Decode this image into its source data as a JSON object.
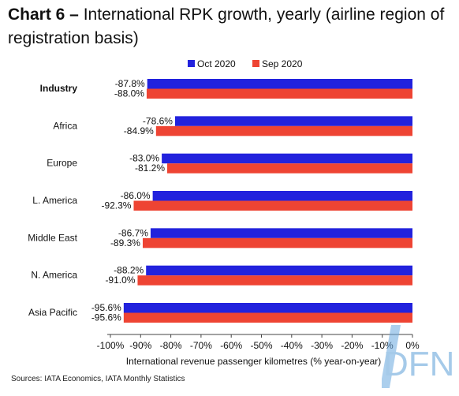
{
  "title": {
    "prefix": "Chart 6 –",
    "text": "International RPK growth, yearly (airline region of registration basis)"
  },
  "source": "Sources: IATA Economics, IATA Monthly Statistics",
  "watermark": "DFN",
  "chart_data": {
    "type": "bar",
    "orientation": "horizontal",
    "title": "Chart 6 – International RPK growth, yearly (airline region of registration basis)",
    "xlabel": "International revenue passenger kilometres (% year-on-year)",
    "ylabel": "",
    "xlim": [
      -100,
      0
    ],
    "xticks": [
      -100,
      -90,
      -80,
      -70,
      -60,
      -50,
      -40,
      -30,
      -20,
      -10,
      0
    ],
    "xtick_labels": [
      "-100%",
      "-90%",
      "-80%",
      "-70%",
      "-60%",
      "-50%",
      "-40%",
      "-30%",
      "-20%",
      "-10%",
      "0%"
    ],
    "grid": false,
    "legend_position": "top",
    "categories": [
      "Industry",
      "Africa",
      "Europe",
      "L. America",
      "Middle East",
      "N. America",
      "Asia Pacific"
    ],
    "bold_categories": [
      "Industry"
    ],
    "series": [
      {
        "name": "Oct 2020",
        "color": "#2222dd",
        "values": [
          -87.8,
          -78.6,
          -83.0,
          -86.0,
          -86.7,
          -88.2,
          -95.6
        ],
        "labels": [
          "-87.8%",
          "-78.6%",
          "-83.0%",
          "-86.0%",
          "-86.7%",
          "-88.2%",
          "-95.6%"
        ]
      },
      {
        "name": "Sep 2020",
        "color": "#ee4433",
        "values": [
          -88.0,
          -84.9,
          -81.2,
          -92.3,
          -89.3,
          -91.0,
          -95.6
        ],
        "labels": [
          "-88.0%",
          "-84.9%",
          "-81.2%",
          "-92.3%",
          "-89.3%",
          "-91.0%",
          "-95.6%"
        ]
      }
    ]
  }
}
